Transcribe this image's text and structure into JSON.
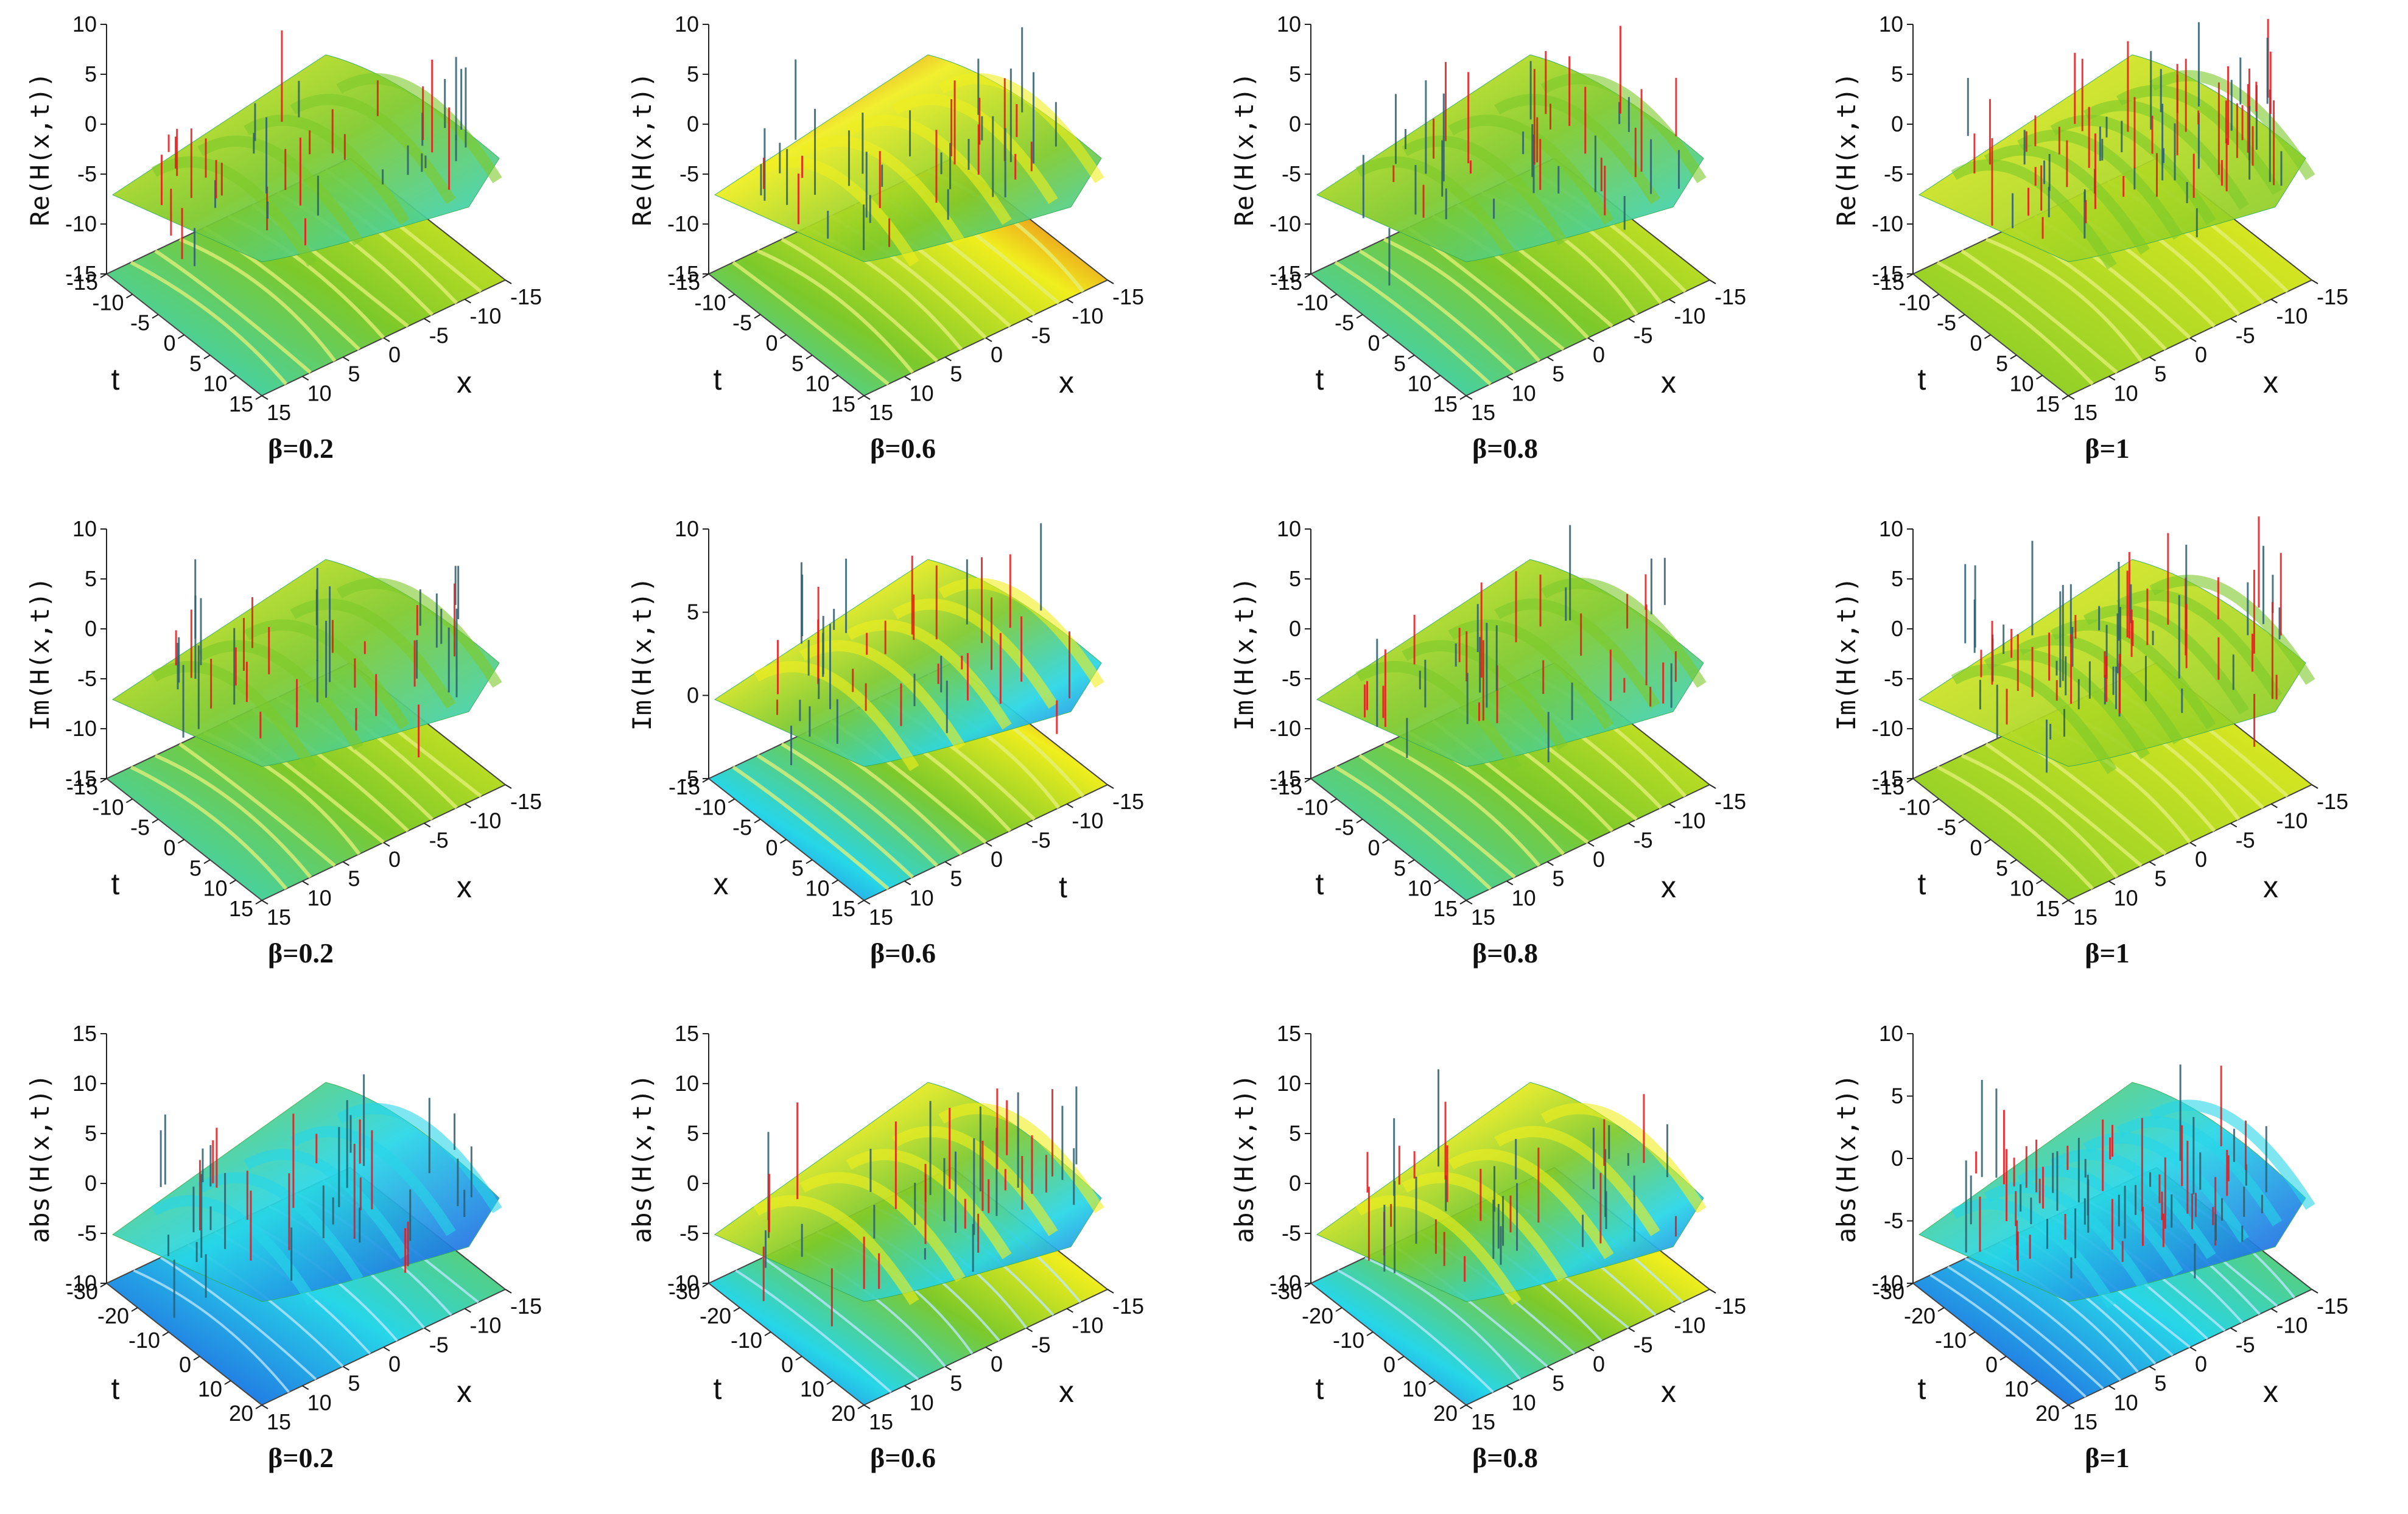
{
  "figure": {
    "rows": [
      {
        "quantity": "Re(H(x,t))"
      },
      {
        "quantity": "Im(H(x,t))"
      },
      {
        "quantity": "abs(H(x,t))"
      }
    ]
  },
  "colors": {
    "red": "#e8161b",
    "yellow": "#f0ee1e",
    "green": "#7dc92a",
    "cyan": "#27d6e8",
    "blue": "#1f47e0"
  },
  "chart_data": [
    {
      "type": "surface3d",
      "zlabel": "Re(H(x,t))",
      "xlabel": "x",
      "ylabel": "t",
      "caption": "β=0.2",
      "zlim": [
        -15,
        10
      ],
      "zticks": [
        "-15",
        "-10",
        "-5",
        "0",
        "5",
        "10"
      ],
      "xticks": [
        "-15",
        "-10",
        "-5",
        "0",
        "5",
        "10",
        "15"
      ],
      "yticks": [
        "-15",
        "-10",
        "-5",
        "0",
        "5",
        "10",
        "15"
      ],
      "beta": 0.2,
      "palette": [
        "yellow",
        "green",
        "cyan"
      ]
    },
    {
      "type": "surface3d",
      "zlabel": "Re(H(x,t))",
      "xlabel": "x",
      "ylabel": "t",
      "caption": "β=0.6",
      "zlim": [
        -15,
        10
      ],
      "zticks": [
        "-15",
        "-10",
        "-5",
        "0",
        "5",
        "10"
      ],
      "xticks": [
        "-15",
        "-10",
        "-5",
        "0",
        "5",
        "10",
        "15"
      ],
      "yticks": [
        "-15",
        "-10",
        "-5",
        "0",
        "5",
        "10",
        "15"
      ],
      "beta": 0.6,
      "palette": [
        "red",
        "yellow",
        "green",
        "cyan"
      ]
    },
    {
      "type": "surface3d",
      "zlabel": "Re(H(x,t))",
      "xlabel": "x",
      "ylabel": "t",
      "caption": "β=0.8",
      "zlim": [
        -15,
        10
      ],
      "zticks": [
        "-15",
        "-10",
        "-5",
        "0",
        "5",
        "10"
      ],
      "xticks": [
        "-15",
        "-10",
        "-5",
        "0",
        "5",
        "10",
        "15"
      ],
      "yticks": [
        "-15",
        "-10",
        "-5",
        "0",
        "5",
        "10",
        "15"
      ],
      "beta": 0.8,
      "palette": [
        "yellow",
        "green",
        "cyan"
      ]
    },
    {
      "type": "surface3d",
      "zlabel": "Re(H(x,t))",
      "xlabel": "x",
      "ylabel": "t",
      "caption": "β=1",
      "zlim": [
        -15,
        10
      ],
      "zticks": [
        "-15",
        "-10",
        "-5",
        "0",
        "5",
        "10"
      ],
      "xticks": [
        "-15",
        "-10",
        "-5",
        "0",
        "5",
        "10",
        "15"
      ],
      "yticks": [
        "-15",
        "-10",
        "-5",
        "0",
        "5",
        "10",
        "15"
      ],
      "beta": 1,
      "palette": [
        "yellow",
        "green"
      ]
    },
    {
      "type": "surface3d",
      "zlabel": "Im(H(x,t))",
      "xlabel": "x",
      "ylabel": "t",
      "caption": "β=0.2",
      "zlim": [
        -15,
        10
      ],
      "zticks": [
        "-15",
        "-10",
        "-5",
        "0",
        "5",
        "10"
      ],
      "xticks": [
        "-15",
        "-10",
        "-5",
        "0",
        "5",
        "10",
        "15"
      ],
      "yticks": [
        "-15",
        "-10",
        "-5",
        "0",
        "5",
        "10",
        "15"
      ],
      "beta": 0.2,
      "palette": [
        "yellow",
        "green",
        "cyan"
      ]
    },
    {
      "type": "surface3d",
      "zlabel": "Im(H(x,t))",
      "xlabel": "t",
      "ylabel": "x",
      "caption": "β=0.6",
      "zlim": [
        -10,
        10
      ],
      "zticks": [
        "-5",
        "0",
        "5",
        "10"
      ],
      "xticks": [
        "-15",
        "-10",
        "-5",
        "0",
        "5",
        "10",
        "15"
      ],
      "yticks": [
        "-15",
        "-10",
        "-5",
        "0",
        "5",
        "10",
        "15"
      ],
      "beta": 0.6,
      "palette": [
        "red",
        "yellow",
        "green",
        "cyan",
        "blue"
      ]
    },
    {
      "type": "surface3d",
      "zlabel": "Im(H(x,t))",
      "xlabel": "x",
      "ylabel": "t",
      "caption": "β=0.8",
      "zlim": [
        -15,
        10
      ],
      "zticks": [
        "-15",
        "-10",
        "-5",
        "0",
        "5",
        "10"
      ],
      "xticks": [
        "-15",
        "-10",
        "-5",
        "0",
        "5",
        "10",
        "15"
      ],
      "yticks": [
        "-15",
        "-10",
        "-5",
        "0",
        "5",
        "10",
        "15"
      ],
      "beta": 0.8,
      "palette": [
        "yellow",
        "green",
        "cyan"
      ]
    },
    {
      "type": "surface3d",
      "zlabel": "Im(H(x,t))",
      "xlabel": "x",
      "ylabel": "t",
      "caption": "β=1",
      "zlim": [
        -15,
        10
      ],
      "zticks": [
        "-15",
        "-10",
        "-5",
        "0",
        "5",
        "10"
      ],
      "xticks": [
        "-15",
        "-10",
        "-5",
        "0",
        "5",
        "10",
        "15"
      ],
      "yticks": [
        "-15",
        "-10",
        "-5",
        "0",
        "5",
        "10",
        "15"
      ],
      "beta": 1,
      "palette": [
        "yellow",
        "green"
      ]
    },
    {
      "type": "surface3d",
      "zlabel": "abs(H(x,t))",
      "xlabel": "x",
      "ylabel": "t",
      "caption": "β=0.2",
      "zlim": [
        -10,
        15
      ],
      "zticks": [
        "-10",
        "-5",
        "0",
        "5",
        "10",
        "15"
      ],
      "xticks": [
        "-15",
        "-10",
        "-5",
        "0",
        "5",
        "10",
        "15"
      ],
      "yticks": [
        "-30",
        "-20",
        "-10",
        "0",
        "10",
        "20"
      ],
      "beta": 0.2,
      "palette": [
        "green",
        "cyan",
        "blue"
      ]
    },
    {
      "type": "surface3d",
      "zlabel": "abs(H(x,t))",
      "xlabel": "x",
      "ylabel": "t",
      "caption": "β=0.6",
      "zlim": [
        -10,
        15
      ],
      "zticks": [
        "-10",
        "-5",
        "0",
        "5",
        "10",
        "15"
      ],
      "xticks": [
        "-15",
        "-10",
        "-5",
        "0",
        "5",
        "10",
        "15"
      ],
      "yticks": [
        "-30",
        "-20",
        "-10",
        "0",
        "10",
        "20"
      ],
      "beta": 0.6,
      "palette": [
        "red",
        "yellow",
        "green",
        "cyan",
        "blue"
      ]
    },
    {
      "type": "surface3d",
      "zlabel": "abs(H(x,t))",
      "xlabel": "x",
      "ylabel": "t",
      "caption": "β=0.8",
      "zlim": [
        -10,
        15
      ],
      "zticks": [
        "-10",
        "-5",
        "0",
        "5",
        "10",
        "15"
      ],
      "xticks": [
        "-15",
        "-10",
        "-5",
        "0",
        "5",
        "10",
        "15"
      ],
      "yticks": [
        "-30",
        "-20",
        "-10",
        "0",
        "10",
        "20"
      ],
      "beta": 0.8,
      "palette": [
        "red",
        "yellow",
        "green",
        "cyan",
        "blue"
      ]
    },
    {
      "type": "surface3d",
      "zlabel": "abs(H(x,t))",
      "xlabel": "x",
      "ylabel": "t",
      "caption": "β=1",
      "zlim": [
        -10,
        10
      ],
      "zticks": [
        "-10",
        "-5",
        "0",
        "5",
        "10"
      ],
      "xticks": [
        "-15",
        "-10",
        "-5",
        "0",
        "5",
        "10",
        "15"
      ],
      "yticks": [
        "-30",
        "-20",
        "-10",
        "0",
        "10",
        "20"
      ],
      "beta": 1,
      "palette": [
        "green",
        "cyan",
        "blue"
      ]
    }
  ]
}
